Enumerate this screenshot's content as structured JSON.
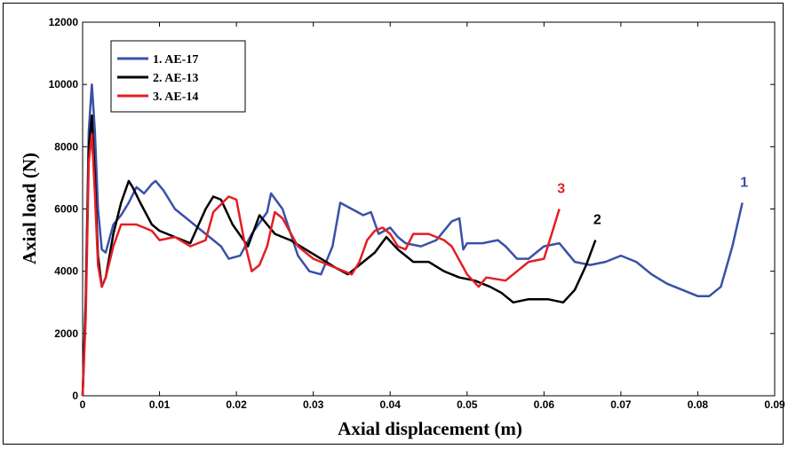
{
  "chart_data": {
    "type": "line",
    "xlabel": "Axial displacement (m)",
    "ylabel": "Axial load (N)",
    "xlim": [
      0,
      0.09
    ],
    "ylim": [
      0,
      12000
    ],
    "xticks": [
      0,
      0.01,
      0.02,
      0.03,
      0.04,
      0.05,
      0.06,
      0.07,
      0.08,
      0.09
    ],
    "xtick_labels": [
      "0",
      "0.01",
      "0.02",
      "0.03",
      "0.04",
      "0.05",
      "0.06",
      "0.07",
      "0.08",
      "0.09"
    ],
    "yticks": [
      0,
      2000,
      4000,
      6000,
      8000,
      10000,
      12000
    ],
    "ytick_labels": [
      "0",
      "2000",
      "4000",
      "6000",
      "8000",
      "10000",
      "12000"
    ],
    "grid": false,
    "legend_position": "top-left",
    "series": [
      {
        "name": "1. AE-17",
        "color": "#3a50a8",
        "end_label": "1",
        "x": [
          0,
          0.0004,
          0.0008,
          0.0012,
          0.0016,
          0.002,
          0.0025,
          0.003,
          0.004,
          0.005,
          0.006,
          0.007,
          0.008,
          0.009,
          0.0095,
          0.0105,
          0.012,
          0.014,
          0.016,
          0.018,
          0.019,
          0.0205,
          0.022,
          0.024,
          0.0245,
          0.026,
          0.028,
          0.0295,
          0.031,
          0.0325,
          0.0335,
          0.035,
          0.0365,
          0.0375,
          0.0385,
          0.04,
          0.041,
          0.042,
          0.044,
          0.046,
          0.048,
          0.049,
          0.0495,
          0.05,
          0.052,
          0.054,
          0.055,
          0.0565,
          0.058,
          0.06,
          0.062,
          0.064,
          0.066,
          0.068,
          0.07,
          0.072,
          0.074,
          0.076,
          0.078,
          0.08,
          0.0815,
          0.083,
          0.0845,
          0.0858
        ],
        "y": [
          0,
          3000,
          8500,
          10000,
          8500,
          6000,
          4700,
          4600,
          5500,
          5800,
          6200,
          6700,
          6500,
          6800,
          6900,
          6600,
          6000,
          5600,
          5200,
          4800,
          4400,
          4500,
          5200,
          5900,
          6500,
          6000,
          4500,
          4000,
          3900,
          4800,
          6200,
          6000,
          5800,
          5900,
          5200,
          5400,
          5100,
          4900,
          4800,
          5000,
          5600,
          5700,
          4700,
          4900,
          4900,
          5000,
          4800,
          4400,
          4400,
          4800,
          4900,
          4300,
          4200,
          4300,
          4500,
          4300,
          3900,
          3600,
          3400,
          3200,
          3200,
          3500,
          4800,
          6200
        ]
      },
      {
        "name": "2. AE-13",
        "color": "#000000",
        "end_label": "2",
        "x": [
          0,
          0.0004,
          0.0008,
          0.0012,
          0.0016,
          0.002,
          0.0025,
          0.003,
          0.004,
          0.005,
          0.006,
          0.0065,
          0.0075,
          0.009,
          0.01,
          0.012,
          0.014,
          0.016,
          0.017,
          0.018,
          0.0195,
          0.0215,
          0.023,
          0.025,
          0.027,
          0.029,
          0.031,
          0.033,
          0.0345,
          0.036,
          0.038,
          0.0395,
          0.041,
          0.043,
          0.045,
          0.047,
          0.049,
          0.051,
          0.053,
          0.0545,
          0.056,
          0.058,
          0.0605,
          0.0625,
          0.064,
          0.0655,
          0.0667
        ],
        "y": [
          0,
          3000,
          8000,
          9000,
          7000,
          4500,
          3500,
          3800,
          5200,
          6200,
          6900,
          6700,
          6200,
          5500,
          5300,
          5100,
          4900,
          6000,
          6400,
          6300,
          5500,
          4800,
          5800,
          5200,
          5000,
          4700,
          4400,
          4100,
          3900,
          4200,
          4600,
          5100,
          4700,
          4300,
          4300,
          4000,
          3800,
          3700,
          3500,
          3300,
          3000,
          3100,
          3100,
          3000,
          3400,
          4200,
          5000
        ]
      },
      {
        "name": "3. AE-14",
        "color": "#e31e24",
        "end_label": "3",
        "x": [
          0,
          0.0004,
          0.0008,
          0.0012,
          0.0016,
          0.002,
          0.0025,
          0.003,
          0.004,
          0.005,
          0.007,
          0.009,
          0.01,
          0.012,
          0.014,
          0.016,
          0.017,
          0.019,
          0.02,
          0.021,
          0.022,
          0.023,
          0.024,
          0.025,
          0.026,
          0.028,
          0.03,
          0.032,
          0.035,
          0.036,
          0.037,
          0.038,
          0.039,
          0.04,
          0.041,
          0.042,
          0.043,
          0.045,
          0.047,
          0.048,
          0.05,
          0.0515,
          0.0525,
          0.055,
          0.0565,
          0.058,
          0.06,
          0.061,
          0.062
        ],
        "y": [
          0,
          2500,
          7500,
          8400,
          6500,
          4200,
          3500,
          3800,
          4800,
          5500,
          5500,
          5300,
          5000,
          5100,
          4800,
          5000,
          5900,
          6400,
          6300,
          5000,
          4000,
          4200,
          4800,
          5900,
          5700,
          4800,
          4400,
          4200,
          3900,
          4300,
          5000,
          5300,
          5400,
          5200,
          4800,
          4700,
          5200,
          5200,
          5000,
          4800,
          3900,
          3500,
          3800,
          3700,
          4000,
          4300,
          4400,
          5200,
          6000
        ]
      }
    ]
  }
}
